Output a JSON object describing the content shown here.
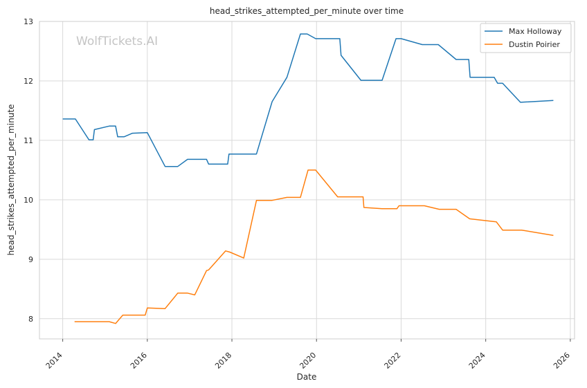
{
  "chart_data": {
    "type": "line",
    "title": "head_strikes_attempted_per_minute over time",
    "xlabel": "Date",
    "ylabel": "head_strikes_attempted_per_minute",
    "watermark": "WolfTickets.AI",
    "x_ticks": [
      "2014",
      "2016",
      "2018",
      "2020",
      "2022",
      "2024",
      "2026"
    ],
    "y_ticks": [
      "8",
      "9",
      "10",
      "11",
      "12",
      "13"
    ],
    "xlim": [
      2013.45,
      2026.1
    ],
    "ylim": [
      7.66,
      13.0
    ],
    "grid": true,
    "legend": "top-right",
    "series": [
      {
        "name": "Max Holloway",
        "color": "#1f77b4",
        "points": [
          [
            2014.0,
            11.36
          ],
          [
            2014.3,
            11.36
          ],
          [
            2014.62,
            11.01
          ],
          [
            2014.72,
            11.01
          ],
          [
            2014.75,
            11.18
          ],
          [
            2015.1,
            11.24
          ],
          [
            2015.25,
            11.24
          ],
          [
            2015.3,
            11.06
          ],
          [
            2015.45,
            11.06
          ],
          [
            2015.65,
            11.12
          ],
          [
            2016.0,
            11.13
          ],
          [
            2016.42,
            10.56
          ],
          [
            2016.72,
            10.56
          ],
          [
            2016.95,
            10.68
          ],
          [
            2017.1,
            10.68
          ],
          [
            2017.4,
            10.68
          ],
          [
            2017.45,
            10.6
          ],
          [
            2017.9,
            10.6
          ],
          [
            2017.93,
            10.77
          ],
          [
            2018.58,
            10.77
          ],
          [
            2018.95,
            11.65
          ],
          [
            2019.3,
            12.06
          ],
          [
            2019.62,
            12.79
          ],
          [
            2019.78,
            12.79
          ],
          [
            2019.98,
            12.71
          ],
          [
            2020.55,
            12.71
          ],
          [
            2020.58,
            12.43
          ],
          [
            2021.05,
            12.01
          ],
          [
            2021.55,
            12.01
          ],
          [
            2021.88,
            12.71
          ],
          [
            2022.0,
            12.71
          ],
          [
            2022.5,
            12.61
          ],
          [
            2022.88,
            12.61
          ],
          [
            2023.3,
            12.36
          ],
          [
            2023.6,
            12.36
          ],
          [
            2023.63,
            12.06
          ],
          [
            2024.2,
            12.06
          ],
          [
            2024.28,
            11.96
          ],
          [
            2024.4,
            11.96
          ],
          [
            2024.82,
            11.64
          ],
          [
            2025.6,
            11.67
          ]
        ]
      },
      {
        "name": "Dustin Poirier",
        "color": "#ff7f0e",
        "points": [
          [
            2014.28,
            7.95
          ],
          [
            2015.1,
            7.95
          ],
          [
            2015.25,
            7.92
          ],
          [
            2015.42,
            8.06
          ],
          [
            2015.95,
            8.06
          ],
          [
            2016.0,
            8.18
          ],
          [
            2016.42,
            8.17
          ],
          [
            2016.72,
            8.43
          ],
          [
            2016.95,
            8.43
          ],
          [
            2017.12,
            8.4
          ],
          [
            2017.4,
            8.81
          ],
          [
            2017.45,
            8.82
          ],
          [
            2017.85,
            9.14
          ],
          [
            2017.95,
            9.12
          ],
          [
            2018.28,
            9.02
          ],
          [
            2018.58,
            9.99
          ],
          [
            2018.95,
            9.99
          ],
          [
            2019.3,
            10.04
          ],
          [
            2019.62,
            10.04
          ],
          [
            2019.8,
            10.5
          ],
          [
            2019.98,
            10.5
          ],
          [
            2020.5,
            10.05
          ],
          [
            2021.1,
            10.05
          ],
          [
            2021.12,
            9.87
          ],
          [
            2021.55,
            9.85
          ],
          [
            2021.9,
            9.85
          ],
          [
            2021.95,
            9.9
          ],
          [
            2022.55,
            9.9
          ],
          [
            2022.9,
            9.84
          ],
          [
            2023.3,
            9.84
          ],
          [
            2023.62,
            9.68
          ],
          [
            2024.25,
            9.63
          ],
          [
            2024.4,
            9.49
          ],
          [
            2024.85,
            9.49
          ],
          [
            2025.6,
            9.4
          ]
        ]
      }
    ]
  }
}
